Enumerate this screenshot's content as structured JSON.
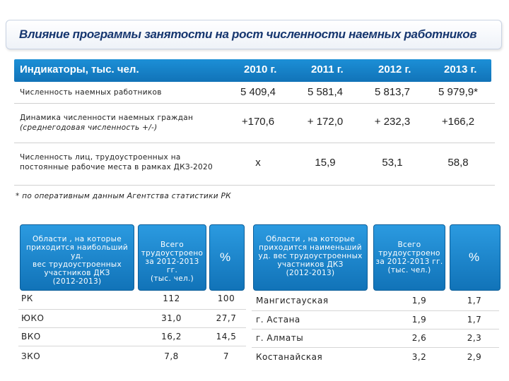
{
  "title": "Влияние программы занятости на рост численности наемных работников",
  "indicators": {
    "header": {
      "label": "Индикаторы, тыс. чел.",
      "years": [
        "2010 г.",
        "2011 г.",
        "2012 г.",
        "2013 г."
      ]
    },
    "rows": [
      {
        "label": "Численность наемных работников",
        "values": [
          "5 409,4",
          "5 581,4",
          "5 813,7",
          "5 979,9*"
        ]
      },
      {
        "label": "Динамика численности наемных граждан",
        "label2": "(среднегодовая численность +/-)",
        "values": [
          "+170,6",
          "+ 172,0",
          "+ 232,3",
          "+166,2"
        ]
      },
      {
        "label": "Численность лиц, трудоустроенных на",
        "label2": "постоянные рабочие места в рамках ДКЗ-2020",
        "values": [
          "х",
          "15,9",
          "53,1",
          "58,8"
        ]
      }
    ]
  },
  "footnote": "* по оперативным данным Агентства статистики РК",
  "left_table": {
    "header": {
      "col1": [
        "Области , на которые",
        "приходится наибольший уд.",
        "вес трудоустроенных",
        "участников ДКЗ",
        "(2012-2013)"
      ],
      "col2": [
        "Всего",
        "трудоустроено",
        "за 2012-2013 гг.",
        "(тыс. чел.)"
      ],
      "col3": "%"
    },
    "rows": [
      {
        "region": "РК",
        "total": "112",
        "pct": "100"
      },
      {
        "region": "ЮКО",
        "total": "31,0",
        "pct": "27,7"
      },
      {
        "region": "ВКО",
        "total": "16,2",
        "pct": "14,5"
      },
      {
        "region": "ЗКО",
        "total": "7,8",
        "pct": "7"
      }
    ]
  },
  "right_table": {
    "header": {
      "col1": [
        "Области , на которые",
        "приходится наименьший",
        "уд. вес трудоустроенных",
        "участников ДКЗ",
        "(2012-2013)"
      ],
      "col2": [
        "Всего",
        "трудоустроено",
        "за 2012-2013 гг.",
        "(тыс. чел.)"
      ],
      "col3": "%"
    },
    "rows": [
      {
        "region": "Мангистауская",
        "total": "1,9",
        "pct": "1,7"
      },
      {
        "region": "г. Астана",
        "total": "1,9",
        "pct": "1,7"
      },
      {
        "region": "г. Алматы",
        "total": "2,6",
        "pct": "2,3"
      },
      {
        "region": "Костанайская",
        "total": "3,2",
        "pct": "2,9"
      }
    ]
  }
}
